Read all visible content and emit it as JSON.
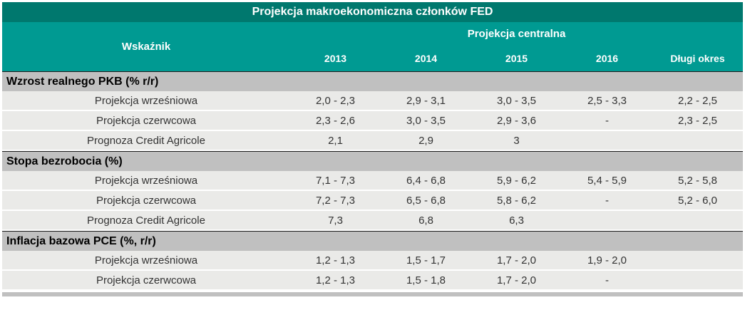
{
  "chart_data": {
    "type": "table",
    "title": "Projekcja makroekonomiczna członków FED",
    "header": {
      "indicator": "Wskaźnik",
      "group": "Projekcja centralna",
      "columns": [
        "2013",
        "2014",
        "2015",
        "2016",
        "Długi okres"
      ]
    },
    "sections": [
      {
        "name": "Wzrost realnego PKB (% r/r)",
        "rows": [
          {
            "label": "Projekcja wrześniowa",
            "values": [
              "2,0 - 2,3",
              "2,9 - 3,1",
              "3,0 - 3,5",
              "2,5 - 3,3",
              "2,2 - 2,5"
            ]
          },
          {
            "label": "Projekcja czerwcowa",
            "values": [
              "2,3 - 2,6",
              "3,0 - 3,5",
              "2,9 - 3,6",
              "-",
              "2,3 - 2,5"
            ]
          },
          {
            "label": "Prognoza Credit Agricole",
            "values": [
              "2,1",
              "2,9",
              "3",
              "",
              ""
            ]
          }
        ]
      },
      {
        "name": "Stopa bezrobocia (%)",
        "rows": [
          {
            "label": "Projekcja wrześniowa",
            "values": [
              "7,1 - 7,3",
              "6,4 - 6,8",
              "5,9 - 6,2",
              "5,4 - 5,9",
              "5,2 - 5,8"
            ]
          },
          {
            "label": "Projekcja czerwcowa",
            "values": [
              "7,2 - 7,3",
              "6,5 - 6,8",
              "5,8 - 6,2",
              "-",
              "5,2 - 6,0"
            ]
          },
          {
            "label": "Prognoza Credit Agricole",
            "values": [
              "7,3",
              "6,8",
              "6,3",
              "",
              ""
            ]
          }
        ]
      },
      {
        "name": "Inflacja bazowa PCE (%, r/r)",
        "rows": [
          {
            "label": "Projekcja wrześniowa",
            "values": [
              "1,2 - 1,3",
              "1,5 - 1,7",
              "1,7 - 2,0",
              "1,9 - 2,0",
              ""
            ]
          },
          {
            "label": "Projekcja czerwcowa",
            "values": [
              "1,2 - 1,3",
              "1,5 - 1,8",
              "1,7 - 2,0",
              "-",
              ""
            ]
          }
        ]
      }
    ],
    "layout": {
      "grid": "off",
      "legend": "none"
    }
  },
  "colors": {
    "title_bar": "#00786E",
    "header_bar": "#009A92",
    "section_bar": "#C0C0C0",
    "row_background": "#EAEAE8",
    "separator_white": "#FFFFFF",
    "section_border": "#1A1A1A",
    "text_dark": "#333333",
    "text_light": "#FFFFFF"
  }
}
